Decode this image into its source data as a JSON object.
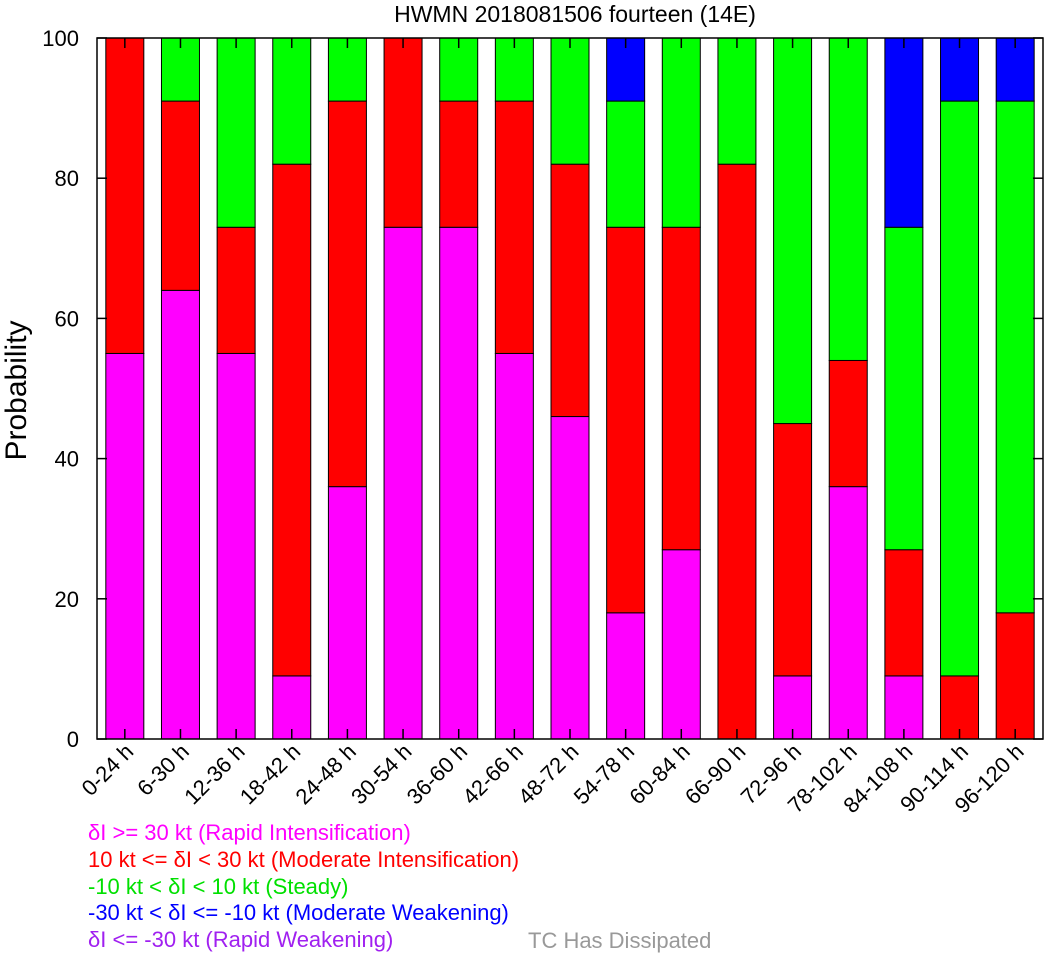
{
  "chart_data": {
    "type": "bar",
    "stacked": true,
    "title": "HWMN 2018081506 fourteen (14E)",
    "xlabel": "",
    "ylabel": "Probability",
    "ylim": [
      0,
      100
    ],
    "yticks": [
      0,
      20,
      40,
      60,
      80,
      100
    ],
    "grid": false,
    "categories": [
      "0-24 h",
      "6-30 h",
      "12-36 h",
      "18-42 h",
      "24-48 h",
      "30-54 h",
      "36-60 h",
      "42-66 h",
      "48-72 h",
      "54-78 h",
      "60-84 h",
      "66-90 h",
      "72-96 h",
      "78-102 h",
      "84-108 h",
      "90-114 h",
      "96-120 h"
    ],
    "series": [
      {
        "name": "δI >= 30 kt (Rapid Intensification)",
        "color": "#ff00ff",
        "values": [
          55,
          64,
          55,
          9,
          36,
          73,
          73,
          55,
          46,
          18,
          27,
          0,
          9,
          36,
          9,
          0,
          0
        ]
      },
      {
        "name": "10 kt <= δI < 30 kt (Moderate Intensification)",
        "color": "#ff0000",
        "values": [
          45,
          27,
          18,
          73,
          55,
          27,
          18,
          36,
          36,
          55,
          46,
          82,
          36,
          18,
          18,
          9,
          18
        ]
      },
      {
        "name": "-10 kt < δI < 10 kt (Steady)",
        "color": "#00ff00",
        "values": [
          0,
          9,
          27,
          18,
          9,
          0,
          9,
          9,
          18,
          18,
          27,
          18,
          55,
          46,
          46,
          82,
          73
        ]
      },
      {
        "name": "-30 kt < δI <= -10 kt (Moderate Weakening)",
        "color": "#0000ff",
        "values": [
          0,
          0,
          0,
          0,
          0,
          0,
          0,
          0,
          0,
          9,
          0,
          0,
          0,
          0,
          27,
          9,
          9
        ]
      },
      {
        "name": "δI <= -30 kt (Rapid Weakening)",
        "color": "#a020f0",
        "values": [
          0,
          0,
          0,
          0,
          0,
          0,
          0,
          0,
          0,
          0,
          0,
          0,
          0,
          0,
          0,
          0,
          0
        ]
      }
    ],
    "dissipated": {
      "label": "TC Has Dissipated",
      "color": "#999999"
    }
  }
}
